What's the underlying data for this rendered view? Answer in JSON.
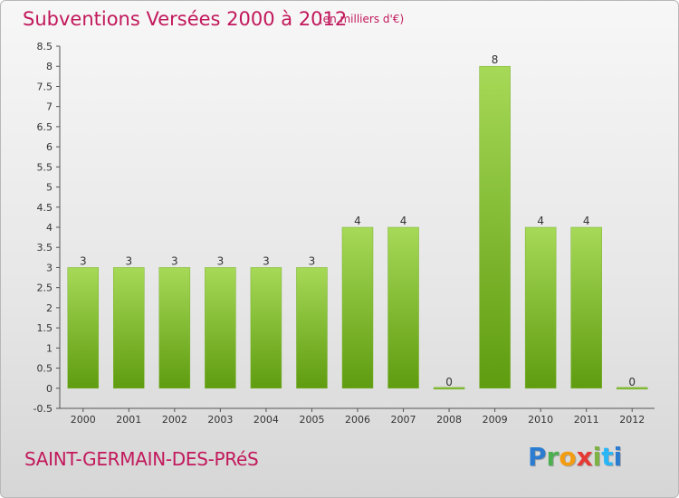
{
  "header": {
    "title": "Subventions Versées 2000 à 2012",
    "unit": "(en milliers d'€)"
  },
  "footer": {
    "commune": "SAINT-GERMAIN-DES-PRéS",
    "logo_letters": [
      "P",
      "r",
      "o",
      "x",
      "i",
      "t",
      "i"
    ],
    "logo_colors": [
      "#2b7bd1",
      "#4caf50",
      "#f39c12",
      "#e53935",
      "#7cb342",
      "#29b6f6",
      "#2b7bd1"
    ]
  },
  "colors": {
    "bar_light": "#a6d957",
    "bar_dark": "#5f9c10",
    "title": "#c2185b"
  },
  "chart_data": {
    "type": "bar",
    "categories": [
      "2000",
      "2001",
      "2002",
      "2003",
      "2004",
      "2005",
      "2006",
      "2007",
      "2008",
      "2009",
      "2010",
      "2011",
      "2012"
    ],
    "values": [
      3,
      3,
      3,
      3,
      3,
      3,
      4,
      4,
      0,
      8,
      4,
      4,
      0
    ],
    "data_labels": [
      "3",
      "3",
      "3",
      "3",
      "3",
      "3",
      "4",
      "4",
      "0",
      "8",
      "4",
      "4",
      "0"
    ],
    "y_ticks": [
      "-0.5",
      "0",
      "0.5",
      "1",
      "1.5",
      "2",
      "2.5",
      "3",
      "3.5",
      "4",
      "4.5",
      "5",
      "5.5",
      "6",
      "6.5",
      "7",
      "7.5",
      "8",
      "8.5"
    ],
    "ylim": [
      -0.5,
      8.5
    ],
    "grid": false
  }
}
